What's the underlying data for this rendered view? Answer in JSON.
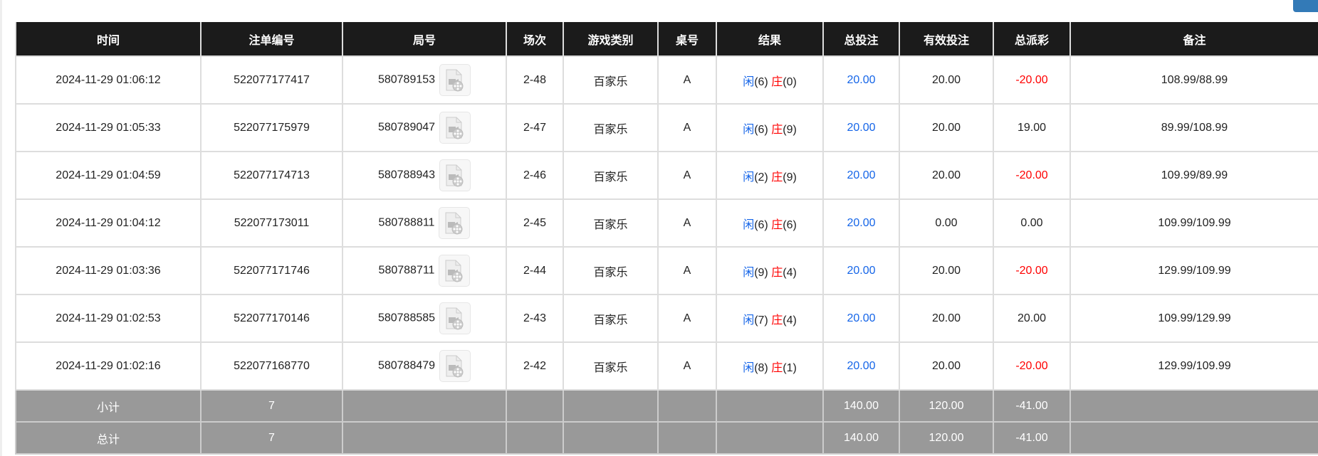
{
  "columns": [
    "时间",
    "注单编号",
    "局号",
    "场次",
    "游戏类别",
    "桌号",
    "结果",
    "总投注",
    "有效投注",
    "总派彩",
    "备注"
  ],
  "rows": [
    {
      "time": "2024-11-29 01:06:12",
      "bet_id": "522077177417",
      "round": "580789153",
      "shoe": "2-48",
      "game": "百家乐",
      "table": "A",
      "player_label": "闲",
      "player": "(6)",
      "banker_label": "庄",
      "banker": "(0)",
      "total": "20.00",
      "valid": "20.00",
      "payout": "-20.00",
      "payout_neg": true,
      "note": "108.99/88.99"
    },
    {
      "time": "2024-11-29 01:05:33",
      "bet_id": "522077175979",
      "round": "580789047",
      "shoe": "2-47",
      "game": "百家乐",
      "table": "A",
      "player_label": "闲",
      "player": "(6)",
      "banker_label": "庄",
      "banker": "(9)",
      "total": "20.00",
      "valid": "20.00",
      "payout": "19.00",
      "payout_neg": false,
      "note": "89.99/108.99"
    },
    {
      "time": "2024-11-29 01:04:59",
      "bet_id": "522077174713",
      "round": "580788943",
      "shoe": "2-46",
      "game": "百家乐",
      "table": "A",
      "player_label": "闲",
      "player": "(2)",
      "banker_label": "庄",
      "banker": "(9)",
      "total": "20.00",
      "valid": "20.00",
      "payout": "-20.00",
      "payout_neg": true,
      "note": "109.99/89.99"
    },
    {
      "time": "2024-11-29 01:04:12",
      "bet_id": "522077173011",
      "round": "580788811",
      "shoe": "2-45",
      "game": "百家乐",
      "table": "A",
      "player_label": "闲",
      "player": "(6)",
      "banker_label": "庄",
      "banker": "(6)",
      "total": "20.00",
      "valid": "0.00",
      "payout": "0.00",
      "payout_neg": false,
      "note": "109.99/109.99"
    },
    {
      "time": "2024-11-29 01:03:36",
      "bet_id": "522077171746",
      "round": "580788711",
      "shoe": "2-44",
      "game": "百家乐",
      "table": "A",
      "player_label": "闲",
      "player": "(9)",
      "banker_label": "庄",
      "banker": "(4)",
      "total": "20.00",
      "valid": "20.00",
      "payout": "-20.00",
      "payout_neg": true,
      "note": "129.99/109.99"
    },
    {
      "time": "2024-11-29 01:02:53",
      "bet_id": "522077170146",
      "round": "580788585",
      "shoe": "2-43",
      "game": "百家乐",
      "table": "A",
      "player_label": "闲",
      "player": "(7)",
      "banker_label": "庄",
      "banker": "(4)",
      "total": "20.00",
      "valid": "20.00",
      "payout": "20.00",
      "payout_neg": false,
      "note": "109.99/129.99"
    },
    {
      "time": "2024-11-29 01:02:16",
      "bet_id": "522077168770",
      "round": "580788479",
      "shoe": "2-42",
      "game": "百家乐",
      "table": "A",
      "player_label": "闲",
      "player": "(8)",
      "banker_label": "庄",
      "banker": "(1)",
      "total": "20.00",
      "valid": "20.00",
      "payout": "-20.00",
      "payout_neg": true,
      "note": "129.99/109.99"
    }
  ],
  "summary": [
    {
      "label": "小计",
      "count": "7",
      "total": "140.00",
      "valid": "120.00",
      "payout": "-41.00"
    },
    {
      "label": "总计",
      "count": "7",
      "total": "140.00",
      "valid": "120.00",
      "payout": "-41.00"
    }
  ],
  "icons": {
    "replay": "video-file-icon"
  },
  "colors": {
    "header_bg": "#1b1b1b",
    "player": "#1565e8",
    "negative": "#ff0000",
    "summary_bg": "#999999",
    "top_button": "#337ab7"
  }
}
